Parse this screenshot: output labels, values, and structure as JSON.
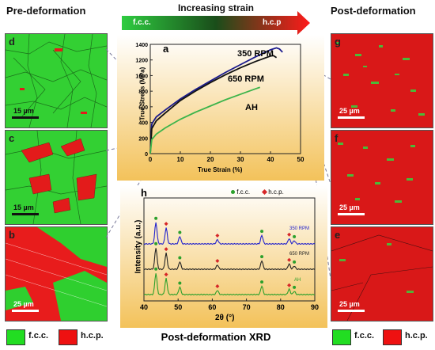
{
  "headings": {
    "pre": "Pre-deformation",
    "post": "Post-deformation",
    "strain": "Increasing strain",
    "xrd": "Post-deformation XRD"
  },
  "arrow": {
    "left_label": "f.c.c.",
    "right_label": "h.c.p"
  },
  "panels": {
    "d": {
      "label": "d",
      "scale": "15 µm"
    },
    "c": {
      "label": "c",
      "scale": "15 µm"
    },
    "b": {
      "label": "b",
      "scale": "25 µm"
    },
    "g": {
      "label": "g",
      "scale": "25 µm"
    },
    "f": {
      "label": "f",
      "scale": "25 µm"
    },
    "e": {
      "label": "e",
      "scale": "25 µm"
    }
  },
  "legend": {
    "fcc": "f.c.c.",
    "hcp": "h.c.p.",
    "fcc_color": "#22dd22",
    "hcp_color": "#ee1111"
  },
  "chart_data": [
    {
      "type": "line",
      "panel_label": "a",
      "xlabel": "True Strain (%)",
      "ylabel": "True Stress (MPa)",
      "xlim": [
        0,
        50
      ],
      "ylim": [
        0,
        1400
      ],
      "xticks": [
        0,
        10,
        20,
        30,
        40,
        50
      ],
      "yticks": [
        0,
        200,
        400,
        600,
        800,
        1000,
        1200,
        1400
      ],
      "series": [
        {
          "name": "350 RPM",
          "color": "#1a1a8c",
          "x": [
            0,
            0.5,
            2,
            5,
            10,
            15,
            20,
            25,
            30,
            35,
            40,
            42,
            43,
            44
          ],
          "y": [
            0,
            380,
            470,
            560,
            700,
            820,
            930,
            1040,
            1140,
            1240,
            1330,
            1355,
            1340,
            1300
          ]
        },
        {
          "name": "650 RPM",
          "color": "#111111",
          "x": [
            0,
            0.5,
            2,
            5,
            10,
            15,
            20,
            25,
            30,
            35,
            40,
            41,
            42
          ],
          "y": [
            0,
            320,
            420,
            520,
            680,
            800,
            910,
            1010,
            1100,
            1180,
            1250,
            1255,
            1230
          ]
        },
        {
          "name": "AH",
          "color": "#3cb44b",
          "x": [
            0,
            0.5,
            2,
            5,
            10,
            15,
            20,
            25,
            30,
            35,
            36.5
          ],
          "y": [
            0,
            180,
            250,
            330,
            440,
            530,
            610,
            690,
            760,
            830,
            850
          ]
        }
      ]
    },
    {
      "type": "line",
      "panel_label": "h",
      "xlabel": "2θ (°)",
      "ylabel": "Intensity (a.u.)",
      "xlim": [
        40,
        90
      ],
      "xticks": [
        40,
        50,
        60,
        70,
        80,
        90
      ],
      "legend": [
        {
          "name": "f.c.c.",
          "color": "#2ca02c",
          "marker": "circle"
        },
        {
          "name": "h.c.p.",
          "color": "#d62728",
          "marker": "diamond"
        }
      ],
      "series": [
        {
          "name": "350 RPM",
          "color": "#2222cc",
          "offset": 2.0
        },
        {
          "name": "650 RPM",
          "color": "#222222",
          "offset": 1.0
        },
        {
          "name": "AH",
          "color": "#2ca02c",
          "offset": 0
        }
      ],
      "peaks": [
        {
          "x": 43.5,
          "h": 1.0,
          "phase": "fcc"
        },
        {
          "x": 46.5,
          "h": 0.75,
          "phase": "hcp"
        },
        {
          "x": 50.5,
          "h": 0.35,
          "phase": "fcc"
        },
        {
          "x": 61.5,
          "h": 0.2,
          "phase": "hcp"
        },
        {
          "x": 74.5,
          "h": 0.4,
          "phase": "fcc"
        },
        {
          "x": 82.5,
          "h": 0.25,
          "phase": "hcp"
        },
        {
          "x": 84.0,
          "h": 0.15,
          "phase": "fcc"
        }
      ]
    }
  ]
}
